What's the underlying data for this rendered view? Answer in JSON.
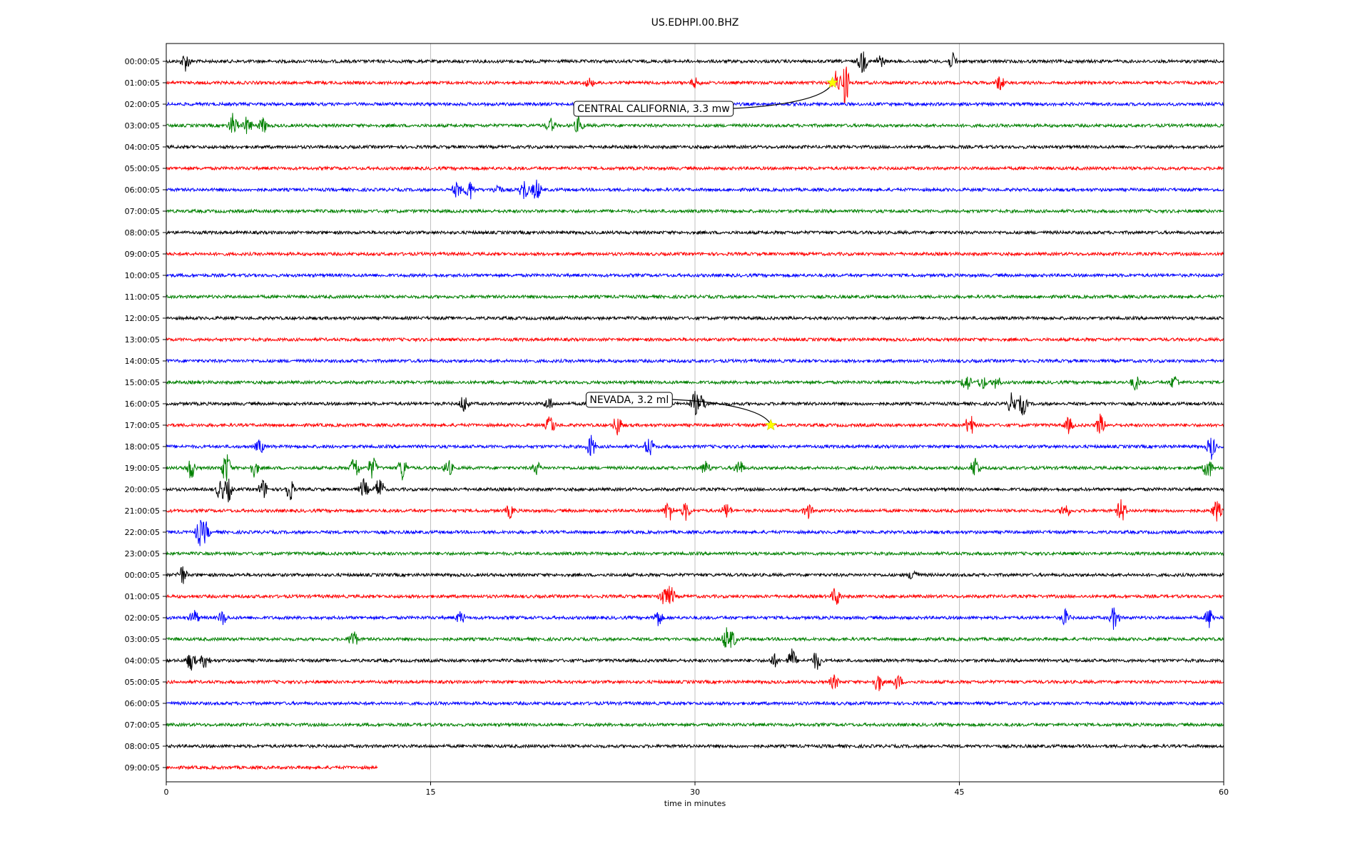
{
  "chart_data": {
    "type": "line",
    "title": "US.EDHPI.00.BHZ",
    "xlabel": "time in minutes",
    "xlim": [
      0,
      60
    ],
    "x_ticks": [
      0,
      15,
      30,
      45,
      60
    ],
    "grid": "vertical",
    "trace_colors": [
      "#000000",
      "#ff0000",
      "#0000ff",
      "#008000"
    ],
    "rows": [
      "00:00:05",
      "01:00:05",
      "02:00:05",
      "03:00:05",
      "04:00:05",
      "05:00:05",
      "06:00:05",
      "07:00:05",
      "08:00:05",
      "09:00:05",
      "10:00:05",
      "11:00:05",
      "12:00:05",
      "13:00:05",
      "14:00:05",
      "15:00:05",
      "16:00:05",
      "17:00:05",
      "18:00:05",
      "19:00:05",
      "20:00:05",
      "21:00:05",
      "22:00:05",
      "23:00:05",
      "00:00:05",
      "01:00:05",
      "02:00:05",
      "03:00:05",
      "04:00:05",
      "05:00:05",
      "06:00:05",
      "07:00:05",
      "08:00:05",
      "09:00:05"
    ],
    "last_row_end_minute": 12,
    "events": [
      {
        "label": "CENTRAL CALIFORNIA, 3.3 mw",
        "row": 1,
        "minute": 37.8,
        "label_row": 2.2,
        "label_minute": 23.0
      },
      {
        "label": "NEVADA, 3.2 ml",
        "row": 17,
        "minute": 34.3,
        "label_row": 15.8,
        "label_minute": 23.7
      }
    ],
    "bursts": [
      [
        0,
        1.1,
        1.2
      ],
      [
        0,
        39.5,
        1.6
      ],
      [
        0,
        44.6,
        1.0
      ],
      [
        0,
        40.5,
        0.8
      ],
      [
        1,
        38.5,
        3.0
      ],
      [
        1,
        38.0,
        1.5
      ],
      [
        1,
        47.3,
        1.0
      ],
      [
        1,
        24.0,
        0.6
      ],
      [
        1,
        30.0,
        0.6
      ],
      [
        3,
        3.8,
        1.6
      ],
      [
        3,
        4.6,
        1.2
      ],
      [
        3,
        5.5,
        1.0
      ],
      [
        3,
        21.8,
        0.9
      ],
      [
        3,
        23.4,
        1.1
      ],
      [
        6,
        16.5,
        1.0
      ],
      [
        6,
        17.2,
        1.4
      ],
      [
        6,
        18.8,
        0.7
      ],
      [
        6,
        20.3,
        1.4
      ],
      [
        6,
        21.0,
        1.5
      ],
      [
        15,
        45.4,
        1.2
      ],
      [
        15,
        46.3,
        0.9
      ],
      [
        15,
        47.1,
        0.8
      ],
      [
        15,
        55.0,
        1.0
      ],
      [
        15,
        57.2,
        0.9
      ],
      [
        16,
        16.9,
        1.2
      ],
      [
        16,
        21.7,
        0.8
      ],
      [
        16,
        30.0,
        1.6
      ],
      [
        16,
        30.4,
        1.0
      ],
      [
        16,
        48.0,
        1.5
      ],
      [
        16,
        48.6,
        1.5
      ],
      [
        17,
        21.8,
        1.4
      ],
      [
        17,
        25.6,
        1.4
      ],
      [
        17,
        45.6,
        1.5
      ],
      [
        17,
        51.2,
        1.0
      ],
      [
        17,
        53.0,
        1.4
      ],
      [
        18,
        5.3,
        0.9
      ],
      [
        18,
        24.1,
        1.5
      ],
      [
        18,
        27.4,
        1.3
      ],
      [
        18,
        59.3,
        1.6
      ],
      [
        19,
        1.4,
        1.5
      ],
      [
        19,
        3.4,
        2.2
      ],
      [
        19,
        5.0,
        1.1
      ],
      [
        19,
        10.7,
        1.7
      ],
      [
        19,
        11.7,
        1.5
      ],
      [
        19,
        13.4,
        1.6
      ],
      [
        19,
        16.0,
        1.1
      ],
      [
        19,
        21.0,
        0.8
      ],
      [
        19,
        30.6,
        0.9
      ],
      [
        19,
        32.5,
        1.1
      ],
      [
        19,
        45.9,
        1.5
      ],
      [
        19,
        59.1,
        1.5
      ],
      [
        20,
        3.1,
        1.5
      ],
      [
        20,
        3.5,
        1.6
      ],
      [
        20,
        5.5,
        1.3
      ],
      [
        20,
        7.0,
        1.6
      ],
      [
        20,
        11.2,
        1.3
      ],
      [
        20,
        12.1,
        1.6
      ],
      [
        21,
        19.5,
        0.9
      ],
      [
        21,
        28.5,
        1.5
      ],
      [
        21,
        29.5,
        1.2
      ],
      [
        21,
        31.8,
        1.0
      ],
      [
        21,
        36.4,
        1.0
      ],
      [
        21,
        51.0,
        1.0
      ],
      [
        21,
        54.2,
        1.6
      ],
      [
        21,
        59.6,
        1.4
      ],
      [
        22,
        1.9,
        1.7
      ],
      [
        22,
        2.2,
        1.5
      ],
      [
        24,
        0.9,
        1.3
      ],
      [
        24,
        42.4,
        0.9
      ],
      [
        25,
        28.2,
        1.3
      ],
      [
        25,
        28.6,
        1.4
      ],
      [
        25,
        38.0,
        1.3
      ],
      [
        26,
        1.6,
        1.0
      ],
      [
        26,
        3.2,
        0.9
      ],
      [
        26,
        16.7,
        0.8
      ],
      [
        26,
        27.9,
        1.1
      ],
      [
        26,
        51.0,
        1.0
      ],
      [
        26,
        53.8,
        1.6
      ],
      [
        26,
        59.2,
        1.3
      ],
      [
        27,
        10.6,
        1.3
      ],
      [
        27,
        31.8,
        1.5
      ],
      [
        27,
        32.1,
        1.2
      ],
      [
        28,
        1.4,
        1.3
      ],
      [
        28,
        2.2,
        1.0
      ],
      [
        28,
        34.5,
        0.8
      ],
      [
        28,
        35.5,
        1.5
      ],
      [
        28,
        36.9,
        1.3
      ],
      [
        29,
        37.9,
        0.9
      ],
      [
        29,
        40.4,
        1.3
      ],
      [
        29,
        41.5,
        1.0
      ]
    ]
  }
}
